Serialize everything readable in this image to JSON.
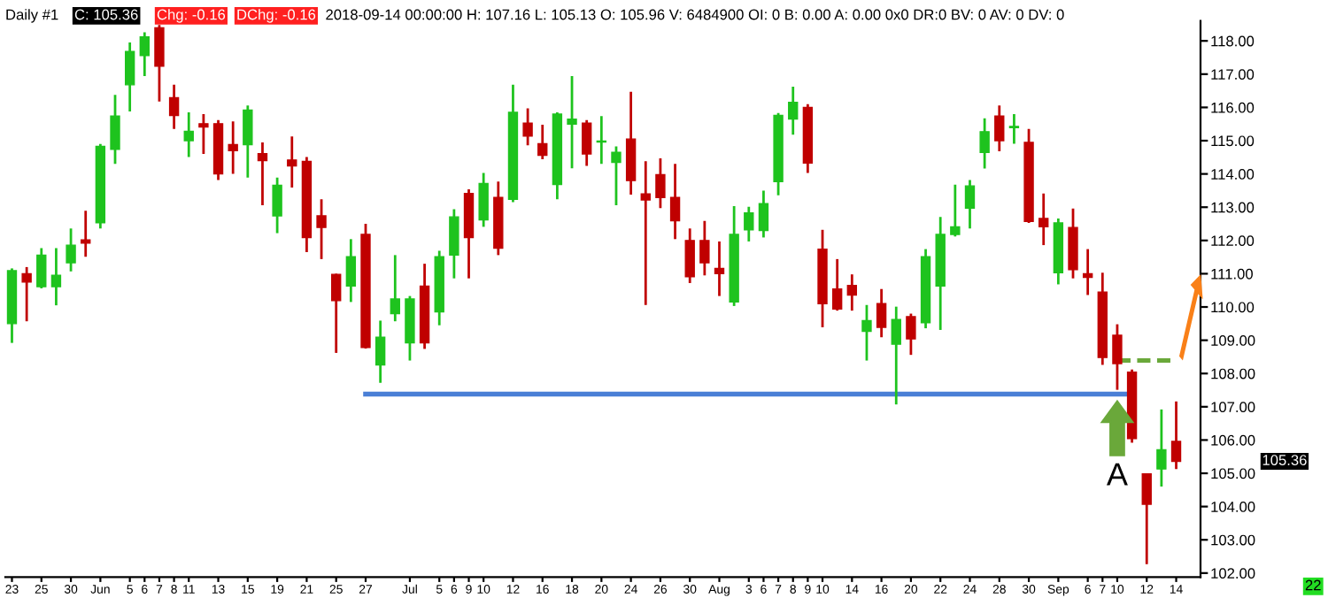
{
  "chart_data": {
    "type": "candlestick",
    "title": "Daily #1",
    "annotations": [
      "C: 105.36",
      "Chg: -0.16",
      "DChg: -0.16",
      "2018-09-14 00:00:00 H: 107.16 L: 105.13 O: 105.96 V: 6484900 OI: 0 B: 0.00 A: 0.00 0x0 DR:0 BV: 0 AV: 0 DV: 0",
      "105.36",
      "A",
      "22"
    ],
    "categories": [
      "23",
      null,
      "25",
      null,
      "30",
      null,
      "Jun",
      null,
      "5",
      "6",
      "7",
      "8",
      "11",
      null,
      "13",
      null,
      "15",
      null,
      "19",
      null,
      "21",
      null,
      "25",
      null,
      "27",
      null,
      null,
      "Jul",
      null,
      "5",
      "6",
      "9",
      "10",
      null,
      "12",
      null,
      "16",
      null,
      "18",
      null,
      "20",
      null,
      "24",
      null,
      "26",
      null,
      "30",
      null,
      "Aug",
      null,
      "3",
      "6",
      "7",
      "8",
      "9",
      "10",
      null,
      "14",
      null,
      "16",
      null,
      "20",
      null,
      "22",
      null,
      "24",
      null,
      "28",
      null,
      "30",
      null,
      "Sep",
      null,
      "6",
      "7",
      "10",
      null,
      "12",
      null,
      "14"
    ],
    "ohlc": [
      [
        109.5,
        111.16,
        108.92,
        111.09
      ],
      [
        111.0,
        111.2,
        109.57,
        110.75
      ],
      [
        110.61,
        111.77,
        110.56,
        111.56
      ],
      [
        110.61,
        111.77,
        110.05,
        110.95
      ],
      [
        111.33,
        112.36,
        111.07,
        111.86
      ],
      [
        112.02,
        112.89,
        111.51,
        111.92
      ],
      [
        112.53,
        114.9,
        112.36,
        114.83
      ],
      [
        114.74,
        116.38,
        114.3,
        115.74
      ],
      [
        116.68,
        117.95,
        115.88,
        117.68
      ],
      [
        117.56,
        118.26,
        116.94,
        118.12
      ],
      [
        118.39,
        118.48,
        116.18,
        117.24
      ],
      [
        116.29,
        116.68,
        115.35,
        115.76
      ],
      [
        115.0,
        115.85,
        114.51,
        115.28
      ],
      [
        115.51,
        115.8,
        114.6,
        115.41
      ],
      [
        115.51,
        115.62,
        113.82,
        114.0
      ],
      [
        114.88,
        115.58,
        114.0,
        114.7
      ],
      [
        114.88,
        116.06,
        113.89,
        115.92
      ],
      [
        114.61,
        114.95,
        113.06,
        114.4
      ],
      [
        112.74,
        113.89,
        112.22,
        113.66
      ],
      [
        114.42,
        115.13,
        113.59,
        114.24
      ],
      [
        114.38,
        114.51,
        111.65,
        112.09
      ],
      [
        112.74,
        113.24,
        111.44,
        112.39
      ],
      [
        110.98,
        111.0,
        108.62,
        110.19
      ],
      [
        110.63,
        112.04,
        110.15,
        111.51
      ],
      [
        112.18,
        112.5,
        108.75,
        108.78
      ],
      [
        108.26,
        109.59,
        107.72,
        109.09
      ],
      [
        109.8,
        111.56,
        109.57,
        110.24
      ],
      [
        108.92,
        110.33,
        108.39,
        110.24
      ],
      [
        110.63,
        111.3,
        108.74,
        108.92
      ],
      [
        109.85,
        111.69,
        109.45,
        111.51
      ],
      [
        111.56,
        112.94,
        110.86,
        112.71
      ],
      [
        113.41,
        113.54,
        110.86,
        112.09
      ],
      [
        112.62,
        114.03,
        112.41,
        113.71
      ],
      [
        113.29,
        113.77,
        111.56,
        111.77
      ],
      [
        113.24,
        116.68,
        113.15,
        115.85
      ],
      [
        115.53,
        115.97,
        114.86,
        115.14
      ],
      [
        114.91,
        115.48,
        114.44,
        114.56
      ],
      [
        113.68,
        115.85,
        113.24,
        115.8
      ],
      [
        115.5,
        116.94,
        114.17,
        115.65
      ],
      [
        115.53,
        115.62,
        114.24,
        114.6
      ],
      [
        114.96,
        115.74,
        114.3,
        114.99
      ],
      [
        114.35,
        114.83,
        113.06,
        114.65
      ],
      [
        115.05,
        116.47,
        113.38,
        113.8
      ],
      [
        113.4,
        114.38,
        110.06,
        113.22
      ],
      [
        113.98,
        114.47,
        112.97,
        113.29
      ],
      [
        113.29,
        114.3,
        112.04,
        112.59
      ],
      [
        112.0,
        112.36,
        110.72,
        110.91
      ],
      [
        112.0,
        112.59,
        110.95,
        111.33
      ],
      [
        111.16,
        111.97,
        110.33,
        111.0
      ],
      [
        110.15,
        113.03,
        110.03,
        112.18
      ],
      [
        112.32,
        113.01,
        111.97,
        112.83
      ],
      [
        112.3,
        113.5,
        112.09,
        113.11
      ],
      [
        113.77,
        115.83,
        113.36,
        115.76
      ],
      [
        115.65,
        116.62,
        115.18,
        116.15
      ],
      [
        116.0,
        116.1,
        114.03,
        114.33
      ],
      [
        111.74,
        112.32,
        109.39,
        110.1
      ],
      [
        110.54,
        111.44,
        109.89,
        109.94
      ],
      [
        110.65,
        110.98,
        109.89,
        110.36
      ],
      [
        109.27,
        110.06,
        108.39,
        109.59
      ],
      [
        110.1,
        110.54,
        109.09,
        109.39
      ],
      [
        108.88,
        110.01,
        107.07,
        109.62
      ],
      [
        109.71,
        109.8,
        108.56,
        109.04
      ],
      [
        109.53,
        111.74,
        109.36,
        111.51
      ],
      [
        110.63,
        112.71,
        109.31,
        112.18
      ],
      [
        112.18,
        113.68,
        112.12,
        112.41
      ],
      [
        112.97,
        113.82,
        112.36,
        113.64
      ],
      [
        114.65,
        115.67,
        114.16,
        115.27
      ],
      [
        115.74,
        116.06,
        114.68,
        115.0
      ],
      [
        115.39,
        115.8,
        114.91,
        115.43
      ],
      [
        114.95,
        115.35,
        112.53,
        112.57
      ],
      [
        112.66,
        113.41,
        111.86,
        112.41
      ],
      [
        111.03,
        112.66,
        110.68,
        112.53
      ],
      [
        112.39,
        112.96,
        110.86,
        111.12
      ],
      [
        111.0,
        111.74,
        110.36,
        110.89
      ],
      [
        110.45,
        111.03,
        108.26,
        108.48
      ],
      [
        109.15,
        109.48,
        107.51,
        108.3
      ],
      [
        108.04,
        108.12,
        105.92,
        106.04
      ],
      [
        104.98,
        105.0,
        102.27,
        104.07
      ],
      [
        105.13,
        106.92,
        104.6,
        105.71
      ],
      [
        105.96,
        107.16,
        105.13,
        105.36
      ]
    ],
    "series": [
      {
        "type": "line",
        "color": "#4a7fd6",
        "line_style": "solid",
        "values": [
          null,
          null,
          null,
          null,
          null,
          null,
          null,
          null,
          null,
          null,
          null,
          null,
          null,
          null,
          null,
          null,
          null,
          null,
          null,
          null,
          null,
          null,
          null,
          null,
          107.38,
          107.38,
          107.38,
          107.38,
          107.38,
          107.38,
          107.38,
          107.38,
          107.38,
          107.38,
          107.38,
          107.38,
          107.38,
          107.38,
          107.38,
          107.38,
          107.38,
          107.38,
          107.38,
          107.38,
          107.38,
          107.38,
          107.38,
          107.38,
          107.38,
          107.38,
          107.38,
          107.38,
          107.38,
          107.38,
          107.38,
          107.38,
          107.38,
          107.38,
          107.38,
          107.38,
          107.38,
          107.38,
          107.38,
          107.38,
          107.38,
          107.38,
          107.38,
          107.38,
          107.38,
          107.38,
          107.38,
          107.38,
          107.38,
          107.38,
          107.38,
          107.38,
          107.38,
          null,
          null,
          null
        ]
      },
      {
        "type": "line",
        "color": "#6aa83a",
        "line_style": "dashed",
        "values": [
          null,
          null,
          null,
          null,
          null,
          null,
          null,
          null,
          null,
          null,
          null,
          null,
          null,
          null,
          null,
          null,
          null,
          null,
          null,
          null,
          null,
          null,
          null,
          null,
          null,
          null,
          null,
          null,
          null,
          null,
          null,
          null,
          null,
          null,
          null,
          null,
          null,
          null,
          null,
          null,
          null,
          null,
          null,
          null,
          null,
          null,
          null,
          null,
          null,
          null,
          null,
          null,
          null,
          null,
          null,
          null,
          null,
          null,
          null,
          null,
          null,
          null,
          null,
          null,
          null,
          null,
          null,
          null,
          null,
          null,
          null,
          null,
          null,
          null,
          null,
          108.39,
          108.39,
          108.39,
          108.39,
          108.39
        ]
      }
    ],
    "colors": [
      "#1ec31e",
      "#c00000",
      "#1ec31e",
      "#1ec31e",
      "#1ec31e",
      "#c00000",
      "#1ec31e",
      "#1ec31e",
      "#1ec31e",
      "#1ec31e",
      "#c00000",
      "#c00000",
      "#1ec31e",
      "#c00000",
      "#c00000",
      "#c00000",
      "#1ec31e",
      "#c00000",
      "#1ec31e",
      "#c00000",
      "#c00000",
      "#c00000",
      "#c00000",
      "#1ec31e",
      "#c00000",
      "#1ec31e",
      "#1ec31e",
      "#1ec31e",
      "#c00000",
      "#1ec31e",
      "#1ec31e",
      "#c00000",
      "#1ec31e",
      "#c00000",
      "#1ec31e",
      "#c00000",
      "#c00000",
      "#1ec31e",
      "#1ec31e",
      "#c00000",
      "#1ec31e",
      "#1ec31e",
      "#c00000",
      "#c00000",
      "#c00000",
      "#c00000",
      "#c00000",
      "#c00000",
      "#c00000",
      "#1ec31e",
      "#1ec31e",
      "#1ec31e",
      "#1ec31e",
      "#1ec31e",
      "#c00000",
      "#c00000",
      "#c00000",
      "#c00000",
      "#1ec31e",
      "#c00000",
      "#1ec31e",
      "#c00000",
      "#1ec31e",
      "#1ec31e",
      "#1ec31e",
      "#1ec31e",
      "#1ec31e",
      "#c00000",
      "#1ec31e",
      "#c00000",
      "#c00000",
      "#1ec31e",
      "#c00000",
      "#c00000",
      "#c00000",
      "#c00000",
      "#c00000",
      "#c00000",
      "#1ec31e",
      "#c00000"
    ],
    "ylim": [
      101.88,
      118.6
    ],
    "yticks": [
      {
        "value": 102,
        "label": "102.00"
      },
      {
        "value": 103,
        "label": "103.00"
      },
      {
        "value": 104,
        "label": "104.00"
      },
      {
        "value": 105,
        "label": "105.00"
      },
      {
        "value": 106,
        "label": "106.00"
      },
      {
        "value": 107,
        "label": "107.00"
      },
      {
        "value": 108,
        "label": "108.00"
      },
      {
        "value": 109,
        "label": "109.00"
      },
      {
        "value": 110,
        "label": "110.00"
      },
      {
        "value": 111,
        "label": "111.00"
      },
      {
        "value": 112,
        "label": "112.00"
      },
      {
        "value": 113,
        "label": "113.00"
      },
      {
        "value": 114,
        "label": "114.00"
      },
      {
        "value": 115,
        "label": "115.00"
      },
      {
        "value": 116,
        "label": "116.00"
      },
      {
        "value": 117,
        "label": "117.00"
      },
      {
        "value": 118,
        "label": "118.00"
      }
    ],
    "grid": false,
    "legend": false
  }
}
